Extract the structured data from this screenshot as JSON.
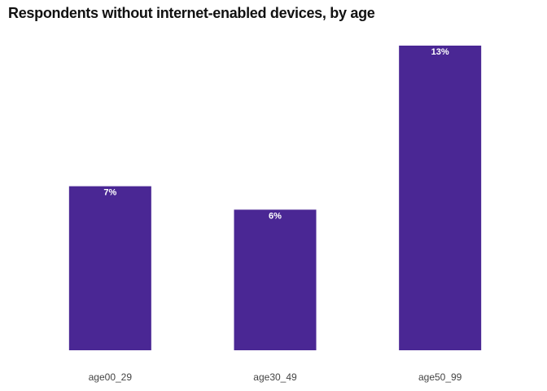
{
  "chart_data": {
    "type": "bar",
    "title": "Respondents without internet-enabled devices, by age",
    "categories": [
      "age00_29",
      "age30_49",
      "age50_99"
    ],
    "values": [
      7,
      6,
      13
    ],
    "value_labels": [
      "7%",
      "6%",
      "13%"
    ],
    "ylim": [
      0,
      13
    ],
    "xlabel": "",
    "ylabel": "",
    "grid": false,
    "bar_color": "#4a2794",
    "label_color": "#ffffff"
  }
}
